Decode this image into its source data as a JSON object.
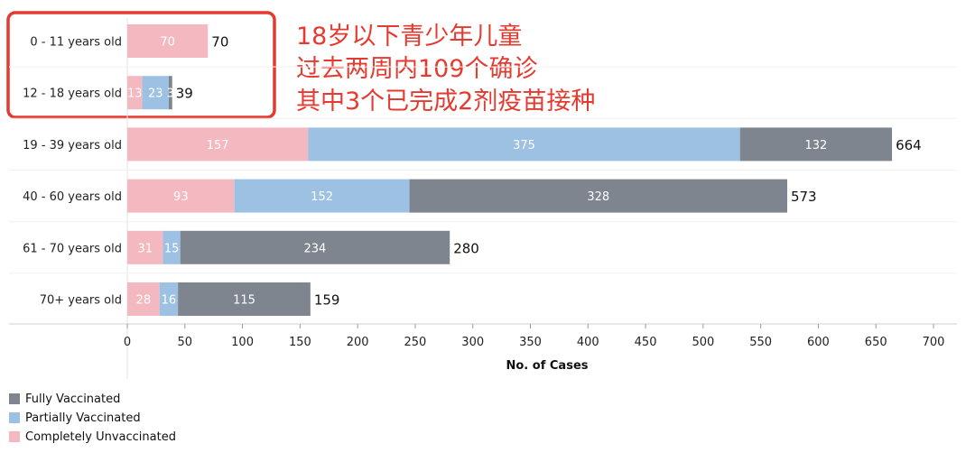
{
  "chart_data": {
    "type": "bar",
    "orientation": "horizontal",
    "stacked": true,
    "categories": [
      "0 - 11 years old",
      "12 - 18 years old",
      "19 - 39 years old",
      "40 - 60 years old",
      "61 - 70 years old",
      "70+ years old"
    ],
    "series": [
      {
        "name": "Completely Unvaccinated",
        "color": "#f4b8c0",
        "values": [
          70,
          13,
          157,
          93,
          31,
          28
        ]
      },
      {
        "name": "Partially Vaccinated",
        "color": "#9cc1e2",
        "values": [
          0,
          23,
          375,
          152,
          15,
          16
        ]
      },
      {
        "name": "Fully Vaccinated",
        "color": "#7f858f",
        "values": [
          0,
          3,
          132,
          328,
          234,
          115
        ]
      }
    ],
    "totals": [
      70,
      39,
      664,
      573,
      280,
      159
    ],
    "xlabel": "No. of Cases",
    "xlim": [
      0,
      700
    ],
    "xticks": [
      0,
      50,
      100,
      150,
      200,
      250,
      300,
      350,
      400,
      450,
      500,
      550,
      600,
      650,
      700
    ],
    "legend": {
      "position": "bottom-left",
      "items": [
        {
          "label": "Fully Vaccinated",
          "color": "#7f858f"
        },
        {
          "label": "Partially Vaccinated",
          "color": "#9cc1e2"
        },
        {
          "label": "Completely Unvaccinated",
          "color": "#f4b8c0"
        }
      ]
    },
    "annotation": {
      "lines": [
        "18岁以下青少年儿童",
        "过去两周内109个确诊",
        "其中3个已完成2剂疫苗接种"
      ],
      "color": "#e53a2f",
      "highlight_box_color": "#e53a2f"
    }
  }
}
